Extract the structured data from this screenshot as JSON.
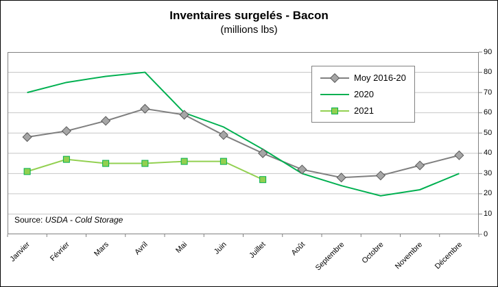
{
  "chart": {
    "title": "Inventaires surgelés - Bacon",
    "subtitle": "(millions lbs)",
    "source_prefix": "Source: ",
    "source_text": "USDA - Cold Storage"
  },
  "chart_data": {
    "type": "line",
    "categories": [
      "Janvier",
      "Février",
      "Mars",
      "Avril",
      "Mai",
      "Juin",
      "Juillet",
      "Août",
      "Septembre",
      "Octobre",
      "Novembre",
      "Décembre"
    ],
    "series": [
      {
        "name": "Moy 2016-20",
        "color": "#7F7F7F",
        "marker": "diamond",
        "marker_fill": "#A6A6A6",
        "marker_stroke": "#595959",
        "values": [
          48,
          51,
          56,
          62,
          59,
          49,
          40,
          32,
          28,
          29,
          34,
          39
        ]
      },
      {
        "name": "2020",
        "color": "#00B050",
        "marker": "none",
        "values": [
          70,
          75,
          78,
          80,
          60,
          53,
          42,
          30,
          24,
          19,
          22,
          30
        ]
      },
      {
        "name": "2021",
        "color": "#92D050",
        "marker": "square",
        "marker_fill": "#92D050",
        "marker_stroke": "#00B050",
        "values": [
          31,
          37,
          35,
          35,
          36,
          36,
          27
        ]
      }
    ],
    "ylim": [
      0,
      90
    ],
    "ytick_step": 10,
    "grid": true,
    "gridline_color": "#C6C6C6",
    "plot_border_color": "#808080",
    "legend_position": "top-right-inside",
    "xlabel": "",
    "ylabel": ""
  }
}
